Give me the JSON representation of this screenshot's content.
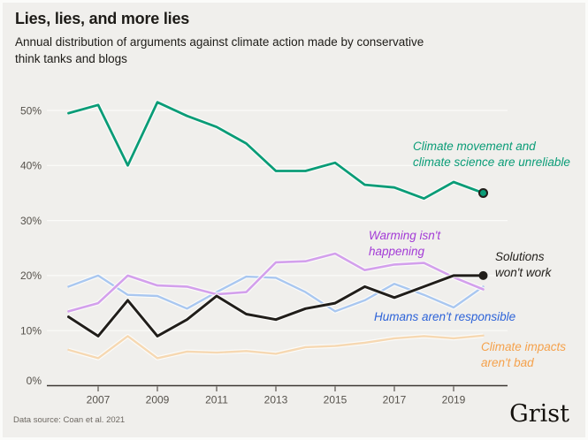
{
  "header": {
    "title": "Lies, lies, and more lies",
    "subtitle": "Annual distribution of arguments against climate action made by conservative\nthink tanks and blogs"
  },
  "footer": {
    "source": "Data source: Coan et al. 2021",
    "logo": "Grist"
  },
  "colors": {
    "background": "#f0efec",
    "grid": "#fbfbf9",
    "axis": "#3c3833",
    "tick_text": "#56524c",
    "casing": "#fdfdfc"
  },
  "chart_data": {
    "type": "line",
    "title": "Lies, lies, and more lies",
    "subtitle": "Annual distribution of arguments against climate action made by conservative think tanks and blogs",
    "x": [
      2006,
      2007,
      2008,
      2009,
      2010,
      2011,
      2012,
      2013,
      2014,
      2015,
      2016,
      2017,
      2018,
      2019,
      2020
    ],
    "x_ticks": [
      2007,
      2009,
      2011,
      2013,
      2015,
      2017,
      2019
    ],
    "y_grid": [
      0,
      10,
      20,
      30,
      40,
      50
    ],
    "y_tick_suffix": "%",
    "ylim": [
      0,
      55
    ],
    "grid": "horizontal",
    "legend_position": "inline-annotations",
    "series": [
      {
        "name": "impacts",
        "label": "Climate impacts\naren't bad",
        "color": "#f6d8b2",
        "label_color": "#f5a14b",
        "width": 2.4,
        "values": [
          6.5,
          5,
          9,
          5,
          6.2,
          6,
          6.3,
          5.8,
          7,
          7.2,
          7.8,
          8.6,
          9,
          8.6,
          9.1
        ]
      },
      {
        "name": "humans",
        "label": "Humans aren't responsible",
        "color": "#a9c7f0",
        "label_color": "#2d63d8",
        "width": 2.4,
        "values": [
          18,
          20,
          16.5,
          16.3,
          14,
          17,
          19.8,
          19.6,
          17,
          13.5,
          15.5,
          18.5,
          16.5,
          14.2,
          18
        ]
      },
      {
        "name": "warming",
        "label": "Warming isn't\nhappening",
        "color": "#d3a0ec",
        "label_color": "#a33bd6",
        "width": 2.6,
        "values": [
          13.5,
          15,
          20,
          18.2,
          18,
          16.6,
          17,
          22.4,
          22.6,
          24,
          21,
          22,
          22.3,
          19.7,
          17.5
        ]
      },
      {
        "name": "unreliable",
        "label": "Climate movement and\nclimate science are unreliable",
        "color": "#0a9c77",
        "label_color": "#0a9c77",
        "width": 2.8,
        "end_dot": {
          "r": 4.5,
          "fill": "#0a9c77",
          "stroke": "#211e1a",
          "stroke_width": 2
        },
        "values": [
          49.5,
          51,
          40,
          51.5,
          49,
          47,
          44,
          39,
          39,
          40.5,
          36.5,
          36,
          34,
          37,
          35
        ]
      },
      {
        "name": "solutions",
        "label": "Solutions\nwon't work",
        "color": "#211e1a",
        "label_color": "#211e1a",
        "width": 3,
        "end_dot": {
          "r": 5,
          "fill": "#211e1a",
          "stroke": "none",
          "stroke_width": 0
        },
        "values": [
          12.5,
          9,
          15.5,
          9,
          12,
          16.3,
          13,
          12,
          14,
          15,
          18,
          16,
          18,
          20,
          20
        ]
      }
    ]
  }
}
